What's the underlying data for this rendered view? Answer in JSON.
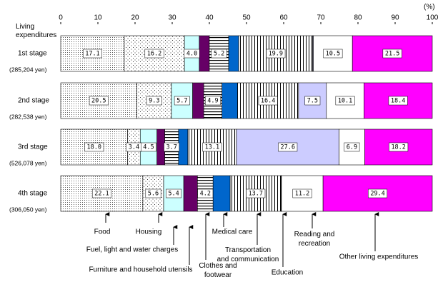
{
  "chart_data": {
    "type": "stacked-bar-horizontal",
    "unit_label": "(%)",
    "row_header": "Living expenditures",
    "categories": [
      "1st stage",
      "2nd stage",
      "3rd stage",
      "4th stage"
    ],
    "category_notes": [
      "(285,204 yen)",
      "(282,538 yen)",
      "(526,078 yen)",
      "(306,050 yen)"
    ],
    "xlim": [
      0,
      100
    ],
    "xticks": [
      0,
      10,
      20,
      30,
      40,
      50,
      60,
      70,
      80,
      90,
      100
    ],
    "series": [
      {
        "name": "Food",
        "color": "#ffffff",
        "pattern": "dense-dots",
        "values": [
          17.1,
          20.5,
          18.0,
          22.1
        ],
        "value_labels": [
          "17.1",
          "20.5",
          "18.0",
          "22.1"
        ]
      },
      {
        "name": "Housing",
        "color": "#ffffff",
        "pattern": "sparse-dots",
        "values": [
          16.2,
          9.3,
          3.4,
          5.6
        ],
        "value_labels": [
          "16.2",
          "9.3",
          "3.4",
          "5.6"
        ]
      },
      {
        "name": "Fuel, light and water charges",
        "color": "#ccffff",
        "values": [
          4.0,
          5.7,
          4.5,
          5.4
        ],
        "value_labels": [
          "4.0",
          "5.7",
          "4.5",
          "5.4"
        ]
      },
      {
        "name": "Furniture and household utensils",
        "color": "#660066",
        "values": [
          2.7,
          3.0,
          2.1,
          3.7
        ]
      },
      {
        "name": "Clothes and footwear",
        "color": "#ffffff",
        "pattern": "hstripes",
        "values": [
          5.2,
          4.9,
          3.7,
          4.2
        ],
        "value_labels": [
          "5.2",
          "4.9",
          "3.7",
          "4.2"
        ]
      },
      {
        "name": "Medical care",
        "color": "#0066cc",
        "values": [
          2.7,
          4.2,
          2.5,
          4.6
        ]
      },
      {
        "name": "Transportation and communication",
        "color": "#ffffff",
        "pattern": "vstripes",
        "values": [
          19.9,
          16.4,
          13.1,
          13.7
        ],
        "value_labels": [
          "19.9",
          "16.4",
          "13.1",
          "13.7"
        ]
      },
      {
        "name": "Education",
        "color": "#ccccff",
        "values": [
          0.2,
          7.5,
          27.6,
          0.1
        ],
        "value_labels": [
          null,
          "7.5",
          "27.6",
          null
        ]
      },
      {
        "name": "Reading and recreation",
        "color": "#ffffff",
        "values": [
          10.5,
          10.1,
          6.9,
          11.2
        ],
        "value_labels": [
          "10.5",
          "10.1",
          "6.9",
          "11.2"
        ]
      },
      {
        "name": "Other living expenditures",
        "color": "#ff00ff",
        "values": [
          21.5,
          18.4,
          18.2,
          29.4
        ],
        "value_labels": [
          "21.5",
          "18.4",
          "18.2",
          "29.4"
        ]
      }
    ]
  }
}
